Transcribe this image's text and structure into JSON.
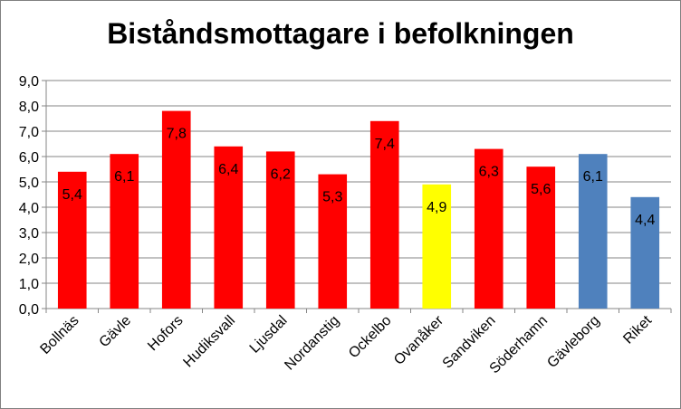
{
  "chart_data": {
    "type": "bar",
    "title": "Biståndsmottagare i befolkningen",
    "xlabel": "",
    "ylabel": "",
    "ylim": [
      0,
      9
    ],
    "ytick_step": 1,
    "ytick_labels": [
      "0,0",
      "1,0",
      "2,0",
      "3,0",
      "4,0",
      "5,0",
      "6,0",
      "7,0",
      "8,0",
      "9,0"
    ],
    "grid": true,
    "legend": "none",
    "categories": [
      "Bollnäs",
      "Gävle",
      "Hofors",
      "Hudiksvall",
      "Ljusdal",
      "Nordanstig",
      "Ockelbo",
      "Ovanåker",
      "Sandviken",
      "Söderhamn",
      "Gävleborg",
      "Riket"
    ],
    "values": [
      5.4,
      6.1,
      7.8,
      6.4,
      6.2,
      5.3,
      7.4,
      4.9,
      6.3,
      5.6,
      6.1,
      4.4
    ],
    "data_labels": [
      "5,4",
      "6,1",
      "7,8",
      "6,4",
      "6,2",
      "5,3",
      "7,4",
      "4,9",
      "6,3",
      "5,6",
      "6,1",
      "4,4"
    ],
    "bar_colors": [
      "#ff0000",
      "#ff0000",
      "#ff0000",
      "#ff0000",
      "#ff0000",
      "#ff0000",
      "#ff0000",
      "#ffff00",
      "#ff0000",
      "#ff0000",
      "#4f81bd",
      "#4f81bd"
    ]
  }
}
